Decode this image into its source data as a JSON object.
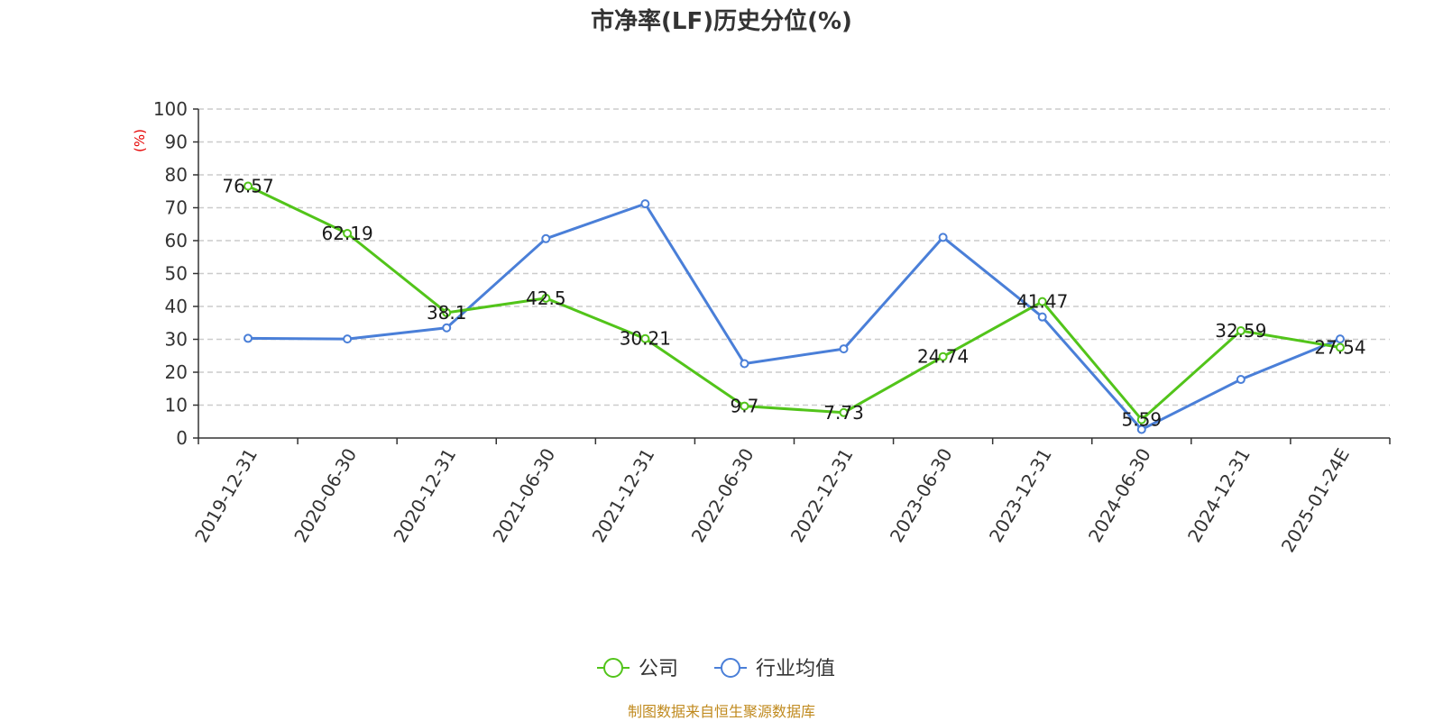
{
  "chart_data": {
    "type": "line",
    "title": "市净率(LF)历史分位(%)",
    "ylabel": "(%)",
    "xlabel": "",
    "ylim": [
      0,
      100
    ],
    "yticks": [
      0,
      10,
      20,
      30,
      40,
      50,
      60,
      70,
      80,
      90,
      100
    ],
    "grid": true,
    "legend_position": "bottom-center",
    "categories": [
      "2019-12-31",
      "2020-06-30",
      "2020-12-31",
      "2021-06-30",
      "2021-12-31",
      "2022-06-30",
      "2022-12-31",
      "2023-06-30",
      "2023-12-31",
      "2024-06-30",
      "2024-12-31",
      "2025-01-24E"
    ],
    "series": [
      {
        "name": "公司",
        "color": "#52c41a",
        "values": [
          76.57,
          62.19,
          38.1,
          42.5,
          30.21,
          9.7,
          7.73,
          24.74,
          41.47,
          5.59,
          32.59,
          27.54
        ],
        "labels": [
          "76.57",
          "62.19",
          "38.1",
          "42.5",
          "30.21",
          "9.7",
          "7.73",
          "24.74",
          "41.47",
          "5.59",
          "32.59",
          "27.54"
        ]
      },
      {
        "name": "行业均值",
        "color": "#4a7fd8",
        "values": [
          30.3,
          30.1,
          33.5,
          60.6,
          71.2,
          22.6,
          27.1,
          61.0,
          36.8,
          2.6,
          17.8,
          30.1
        ]
      }
    ],
    "source": "制图数据来自恒生聚源数据库"
  }
}
